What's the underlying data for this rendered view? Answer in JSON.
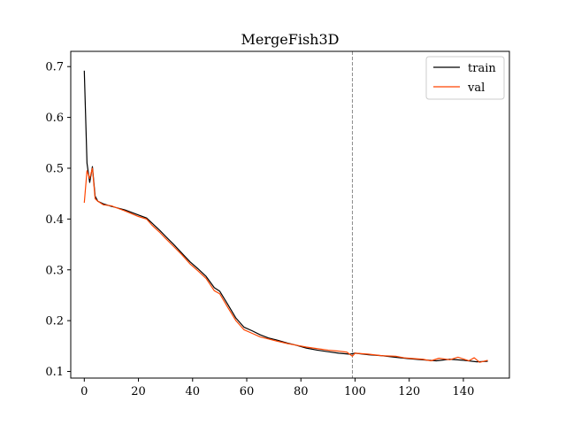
{
  "chart_data": {
    "type": "line",
    "title": "MergeFish3D",
    "xlabel": "",
    "ylabel": "",
    "xlim": [
      -5,
      157
    ],
    "ylim": [
      0.087,
      0.73
    ],
    "xticks": [
      0,
      20,
      40,
      60,
      80,
      100,
      120,
      140
    ],
    "yticks": [
      0.1,
      0.2,
      0.3,
      0.4,
      0.5,
      0.6,
      0.7
    ],
    "xtick_labels": [
      "0",
      "20",
      "40",
      "60",
      "80",
      "100",
      "120",
      "140"
    ],
    "ytick_labels": [
      "0.1",
      "0.2",
      "0.3",
      "0.4",
      "0.5",
      "0.6",
      "0.7"
    ],
    "grid": false,
    "legend": "top-right",
    "vline": {
      "x": 99,
      "style": "dashed",
      "color": "#808080"
    },
    "series": [
      {
        "name": "train",
        "color": "#000000",
        "points": [
          [
            0,
            0.692
          ],
          [
            1,
            0.51
          ],
          [
            2,
            0.472
          ],
          [
            3,
            0.503
          ],
          [
            4,
            0.445
          ],
          [
            5,
            0.435
          ],
          [
            7,
            0.43
          ],
          [
            10,
            0.425
          ],
          [
            15,
            0.418
          ],
          [
            20,
            0.408
          ],
          [
            23,
            0.402
          ],
          [
            25,
            0.392
          ],
          [
            28,
            0.377
          ],
          [
            30,
            0.366
          ],
          [
            33,
            0.35
          ],
          [
            36,
            0.333
          ],
          [
            39,
            0.316
          ],
          [
            42,
            0.302
          ],
          [
            45,
            0.287
          ],
          [
            48,
            0.265
          ],
          [
            50,
            0.258
          ],
          [
            53,
            0.232
          ],
          [
            56,
            0.205
          ],
          [
            59,
            0.187
          ],
          [
            62,
            0.18
          ],
          [
            65,
            0.172
          ],
          [
            68,
            0.166
          ],
          [
            71,
            0.162
          ],
          [
            75,
            0.156
          ],
          [
            78,
            0.152
          ],
          [
            82,
            0.146
          ],
          [
            86,
            0.142
          ],
          [
            90,
            0.139
          ],
          [
            94,
            0.136
          ],
          [
            98,
            0.134
          ],
          [
            100,
            0.136
          ],
          [
            105,
            0.133
          ],
          [
            110,
            0.131
          ],
          [
            115,
            0.128
          ],
          [
            120,
            0.125
          ],
          [
            125,
            0.123
          ],
          [
            130,
            0.121
          ],
          [
            135,
            0.124
          ],
          [
            140,
            0.122
          ],
          [
            145,
            0.119
          ],
          [
            149,
            0.12
          ]
        ]
      },
      {
        "name": "val",
        "color": "#ff4500",
        "points": [
          [
            0,
            0.432
          ],
          [
            1,
            0.495
          ],
          [
            2,
            0.48
          ],
          [
            3,
            0.5
          ],
          [
            4,
            0.44
          ],
          [
            5,
            0.435
          ],
          [
            7,
            0.428
          ],
          [
            10,
            0.426
          ],
          [
            15,
            0.416
          ],
          [
            20,
            0.405
          ],
          [
            23,
            0.4
          ],
          [
            25,
            0.388
          ],
          [
            28,
            0.373
          ],
          [
            30,
            0.362
          ],
          [
            33,
            0.346
          ],
          [
            36,
            0.33
          ],
          [
            39,
            0.312
          ],
          [
            42,
            0.298
          ],
          [
            45,
            0.283
          ],
          [
            48,
            0.259
          ],
          [
            50,
            0.253
          ],
          [
            53,
            0.226
          ],
          [
            56,
            0.2
          ],
          [
            59,
            0.182
          ],
          [
            62,
            0.175
          ],
          [
            65,
            0.168
          ],
          [
            68,
            0.164
          ],
          [
            71,
            0.16
          ],
          [
            75,
            0.155
          ],
          [
            78,
            0.152
          ],
          [
            82,
            0.148
          ],
          [
            86,
            0.145
          ],
          [
            90,
            0.142
          ],
          [
            94,
            0.14
          ],
          [
            97,
            0.138
          ],
          [
            99,
            0.13
          ],
          [
            100,
            0.136
          ],
          [
            105,
            0.134
          ],
          [
            110,
            0.131
          ],
          [
            115,
            0.13
          ],
          [
            118,
            0.127
          ],
          [
            120,
            0.126
          ],
          [
            125,
            0.124
          ],
          [
            128,
            0.121
          ],
          [
            131,
            0.126
          ],
          [
            135,
            0.123
          ],
          [
            138,
            0.128
          ],
          [
            142,
            0.121
          ],
          [
            144,
            0.127
          ],
          [
            146,
            0.118
          ],
          [
            149,
            0.122
          ]
        ]
      }
    ]
  }
}
